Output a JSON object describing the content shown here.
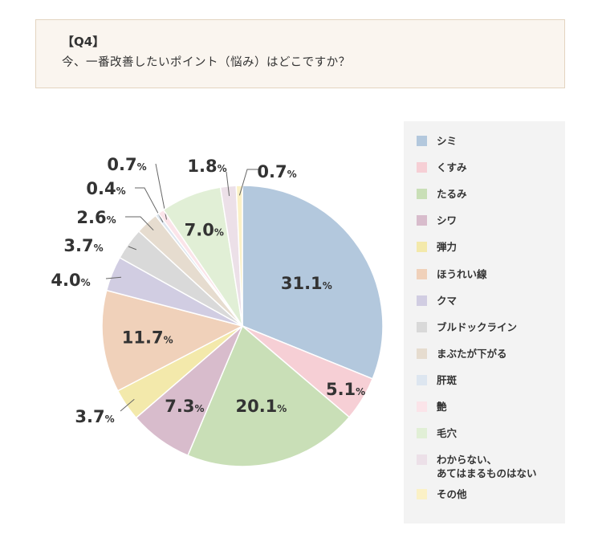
{
  "question": {
    "number": "【Q4】",
    "text": "今、一番改善したいポイント（悩み）はどこですか？"
  },
  "chart_data": {
    "type": "pie",
    "start": "12 o'clock, clockwise",
    "unit_symbol": "%",
    "slices": [
      {
        "label": "シミ",
        "value": 31.1,
        "display": "31.1",
        "color": "#b3c8dd"
      },
      {
        "label": "くすみ",
        "value": 5.1,
        "display": "5.1",
        "color": "#f6cfd5"
      },
      {
        "label": "たるみ",
        "value": 20.1,
        "display": "20.1",
        "color": "#c9dfb7"
      },
      {
        "label": "シワ",
        "value": 7.3,
        "display": "7.3",
        "color": "#d8bccc"
      },
      {
        "label": "弾力",
        "value": 3.7,
        "display": "3.7",
        "color": "#f3e9ab"
      },
      {
        "label": "ほうれい線",
        "value": 11.7,
        "display": "11.7",
        "color": "#f0d1ba"
      },
      {
        "label": "クマ",
        "value": 4.0,
        "display": "4.0",
        "color": "#d1cde2"
      },
      {
        "label": "ブルドックライン",
        "value": 3.7,
        "display": "3.7",
        "color": "#d9d9d9"
      },
      {
        "label": "まぶたが下がる",
        "value": 2.6,
        "display": "2.6",
        "color": "#e6dccf"
      },
      {
        "label": "肝斑",
        "value": 0.4,
        "display": "0.4",
        "color": "#dde6f0"
      },
      {
        "label": "艶",
        "value": 0.7,
        "display": "0.7",
        "color": "#fbe4e9"
      },
      {
        "label": "毛穴",
        "value": 7.0,
        "display": "7.0",
        "color": "#e1efd6"
      },
      {
        "label": "わからない、\nあてはまるものはない",
        "value": 1.8,
        "display": "1.8",
        "color": "#ece0e8"
      },
      {
        "label": "その他",
        "value": 0.7,
        "display": "0.7",
        "color": "#fbf1c6"
      }
    ]
  }
}
